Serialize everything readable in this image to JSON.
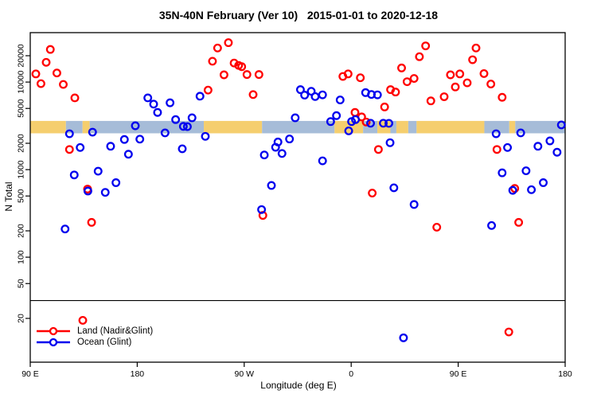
{
  "chart_data": {
    "type": "scatter",
    "title": "35N-40N February (Ver 10)   2015-01-01 to 2020-12-18",
    "xlabel": "Longitude (deg E)",
    "ylabel": "N Total",
    "x_axis": {
      "note": "x units are degrees eastward along axis starting at 90E; axis spans 450 degrees (90E..180..90W..0..90E..180)",
      "range": [
        0,
        450
      ],
      "tick_positions": [
        0,
        90,
        180,
        270,
        360,
        450
      ],
      "tick_labels": [
        "90 E",
        "180",
        "90 W",
        "0",
        "90 E",
        "180"
      ]
    },
    "y_axis": {
      "scale": "log",
      "range": [
        6,
        37000
      ],
      "ticks": [
        20,
        50,
        100,
        200,
        500,
        1000,
        2000,
        5000,
        10000,
        20000
      ]
    },
    "reference_line_n": 32,
    "band": {
      "note": "land/ocean strip drawn across plot near N=3000",
      "top_n": 3600,
      "bottom_n": 2600,
      "land_color": "#F5CE6E",
      "ocean_color": "#A6BCD8",
      "segments": [
        {
          "from": 0,
          "to": 30,
          "type": "land"
        },
        {
          "from": 30,
          "to": 44,
          "type": "ocean"
        },
        {
          "from": 44,
          "to": 50,
          "type": "land"
        },
        {
          "from": 50,
          "to": 146,
          "type": "ocean"
        },
        {
          "from": 146,
          "to": 195,
          "type": "land"
        },
        {
          "from": 195,
          "to": 256,
          "type": "ocean"
        },
        {
          "from": 256,
          "to": 280,
          "type": "land"
        },
        {
          "from": 280,
          "to": 292,
          "type": "ocean"
        },
        {
          "from": 292,
          "to": 303,
          "type": "land"
        },
        {
          "from": 303,
          "to": 308,
          "type": "ocean"
        },
        {
          "from": 308,
          "to": 318,
          "type": "land"
        },
        {
          "from": 318,
          "to": 325,
          "type": "ocean"
        },
        {
          "from": 325,
          "to": 382,
          "type": "land"
        },
        {
          "from": 382,
          "to": 403,
          "type": "ocean"
        },
        {
          "from": 403,
          "to": 408,
          "type": "land"
        },
        {
          "from": 408,
          "to": 450,
          "type": "ocean"
        }
      ]
    },
    "series": [
      {
        "name": "Land (Nadir&Glint)",
        "color": "#FF0000",
        "points": [
          [
            4.7,
            12400
          ],
          [
            9.0,
            9600
          ],
          [
            13.4,
            16800
          ],
          [
            16.9,
            23600
          ],
          [
            22.4,
            12700
          ],
          [
            27.8,
            9400
          ],
          [
            37.5,
            6600
          ],
          [
            33.0,
            1700
          ],
          [
            48.2,
            600
          ],
          [
            51.6,
            250
          ],
          [
            44.2,
            19
          ],
          [
            149.6,
            8100
          ],
          [
            153.3,
            17300
          ],
          [
            157.6,
            24500
          ],
          [
            163.0,
            12100
          ],
          [
            166.7,
            28200
          ],
          [
            171.5,
            16500
          ],
          [
            175.3,
            15500
          ],
          [
            177.9,
            15000
          ],
          [
            182.3,
            12200
          ],
          [
            187.5,
            7200
          ],
          [
            192.4,
            12200
          ],
          [
            195.7,
            300
          ],
          [
            263.0,
            11600
          ],
          [
            267.4,
            12400
          ],
          [
            273.2,
            4500
          ],
          [
            277.7,
            11200
          ],
          [
            278.8,
            4000
          ],
          [
            282.6,
            3500
          ],
          [
            287.7,
            540
          ],
          [
            292.9,
            1700
          ],
          [
            298.1,
            5200
          ],
          [
            303.1,
            8200
          ],
          [
            307.3,
            7700
          ],
          [
            312.4,
            14500
          ],
          [
            317.0,
            10100
          ],
          [
            322.9,
            11000
          ],
          [
            327.4,
            19500
          ],
          [
            332.6,
            25900
          ],
          [
            337.0,
            6100
          ],
          [
            342.0,
            220
          ],
          [
            348.2,
            6800
          ],
          [
            353.5,
            12100
          ],
          [
            357.6,
            8800
          ],
          [
            361.4,
            12400
          ],
          [
            367.6,
            9800
          ],
          [
            372.1,
            18000
          ],
          [
            375.0,
            24500
          ],
          [
            381.7,
            12500
          ],
          [
            387.5,
            9500
          ],
          [
            392.6,
            1700
          ],
          [
            397.0,
            6700
          ],
          [
            402.6,
            14
          ],
          [
            407.6,
            610
          ],
          [
            410.9,
            250
          ]
        ]
      },
      {
        "name": "Ocean (Glint)",
        "color": "#0000EE",
        "points": [
          [
            29.3,
            210
          ],
          [
            33.0,
            2570
          ],
          [
            37.0,
            870
          ],
          [
            42.0,
            1790
          ],
          [
            48.5,
            570
          ],
          [
            52.4,
            2680
          ],
          [
            57.1,
            960
          ],
          [
            63.1,
            550
          ],
          [
            67.6,
            1850
          ],
          [
            72.1,
            710
          ],
          [
            79.2,
            2210
          ],
          [
            82.6,
            1500
          ],
          [
            88.4,
            3170
          ],
          [
            92.2,
            2230
          ],
          [
            98.9,
            6600
          ],
          [
            103.8,
            5600
          ],
          [
            107.1,
            4500
          ],
          [
            113.4,
            2630
          ],
          [
            117.6,
            5800
          ],
          [
            122.3,
            3730
          ],
          [
            127.9,
            1730
          ],
          [
            128.8,
            3120
          ],
          [
            132.2,
            3100
          ],
          [
            136.1,
            3910
          ],
          [
            142.8,
            6900
          ],
          [
            147.3,
            2400
          ],
          [
            194.6,
            350
          ],
          [
            196.9,
            1470
          ],
          [
            202.9,
            660
          ],
          [
            206.4,
            1800
          ],
          [
            208.4,
            2070
          ],
          [
            211.8,
            1530
          ],
          [
            218.1,
            2240
          ],
          [
            222.9,
            3910
          ],
          [
            227.3,
            8200
          ],
          [
            230.8,
            7100
          ],
          [
            236.4,
            7850
          ],
          [
            239.7,
            6830
          ],
          [
            245.9,
            7150
          ],
          [
            245.9,
            1260
          ],
          [
            252.7,
            3540
          ],
          [
            257.6,
            4140
          ],
          [
            260.7,
            6250
          ],
          [
            267.9,
            2770
          ],
          [
            270.3,
            3540
          ],
          [
            273.6,
            3730
          ],
          [
            282.1,
            7580
          ],
          [
            286.3,
            3390
          ],
          [
            287.0,
            7220
          ],
          [
            292.1,
            7150
          ],
          [
            297.0,
            3390
          ],
          [
            301.7,
            3380
          ],
          [
            302.7,
            2030
          ],
          [
            305.9,
            620
          ],
          [
            314.0,
            12
          ],
          [
            322.9,
            400
          ],
          [
            388.1,
            230
          ],
          [
            391.9,
            2570
          ],
          [
            397.0,
            920
          ],
          [
            401.5,
            1790
          ],
          [
            405.9,
            580
          ],
          [
            412.6,
            2630
          ],
          [
            417.1,
            970
          ],
          [
            421.6,
            590
          ],
          [
            427.1,
            1850
          ],
          [
            431.6,
            710
          ],
          [
            437.2,
            2130
          ],
          [
            443.2,
            1580
          ],
          [
            446.8,
            3240
          ]
        ]
      }
    ],
    "legend_position": "bottom-left"
  }
}
